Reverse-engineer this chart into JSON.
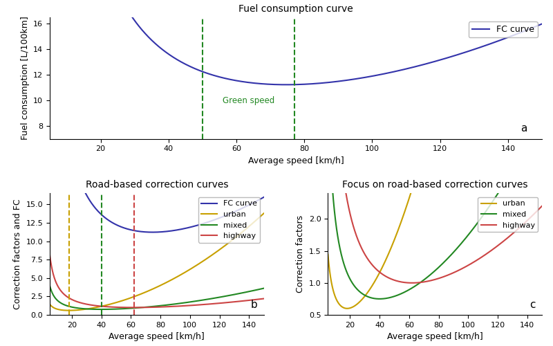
{
  "title_a": "Fuel consumption curve",
  "title_b": "Road-based correction curves",
  "title_c": "Focus on road-based correction curves",
  "xlabel": "Average speed [km/h]",
  "ylabel_a": "Fuel consumption [L/100km]",
  "ylabel_b": "Correction factors and FC",
  "ylabel_c": "Correction factors",
  "speed_min": 5,
  "speed_max": 150,
  "green_speed_low": 50,
  "green_speed_high": 77,
  "dashed_urban": 18,
  "dashed_mixed": 40,
  "dashed_highway": 62,
  "fc_color": "#3333aa",
  "urban_color": "#c8a000",
  "mixed_color": "#228822",
  "highway_color": "#cc4444",
  "green_color": "#228822",
  "label_fc": "FC curve",
  "label_urban": "urban",
  "label_mixed": "mixed",
  "label_highway": "highway",
  "label_green": "Green speed",
  "panel_a": "a",
  "panel_b": "b",
  "panel_c": "c",
  "fc_a": 350.0,
  "fc_b": 0.00042,
  "fc_c": 4.2,
  "urban_a": 120.0,
  "urban_b": 0.00028,
  "urban_c": 0.45,
  "urban_scale": 0.6,
  "mixed_a": 160.0,
  "mixed_b": 0.0002,
  "mixed_c": 0.55,
  "mixed_scale": 0.75,
  "highway_a": 200.0,
  "highway_b": 0.00016,
  "highway_c": 0.7,
  "highway_scale": 1.0
}
